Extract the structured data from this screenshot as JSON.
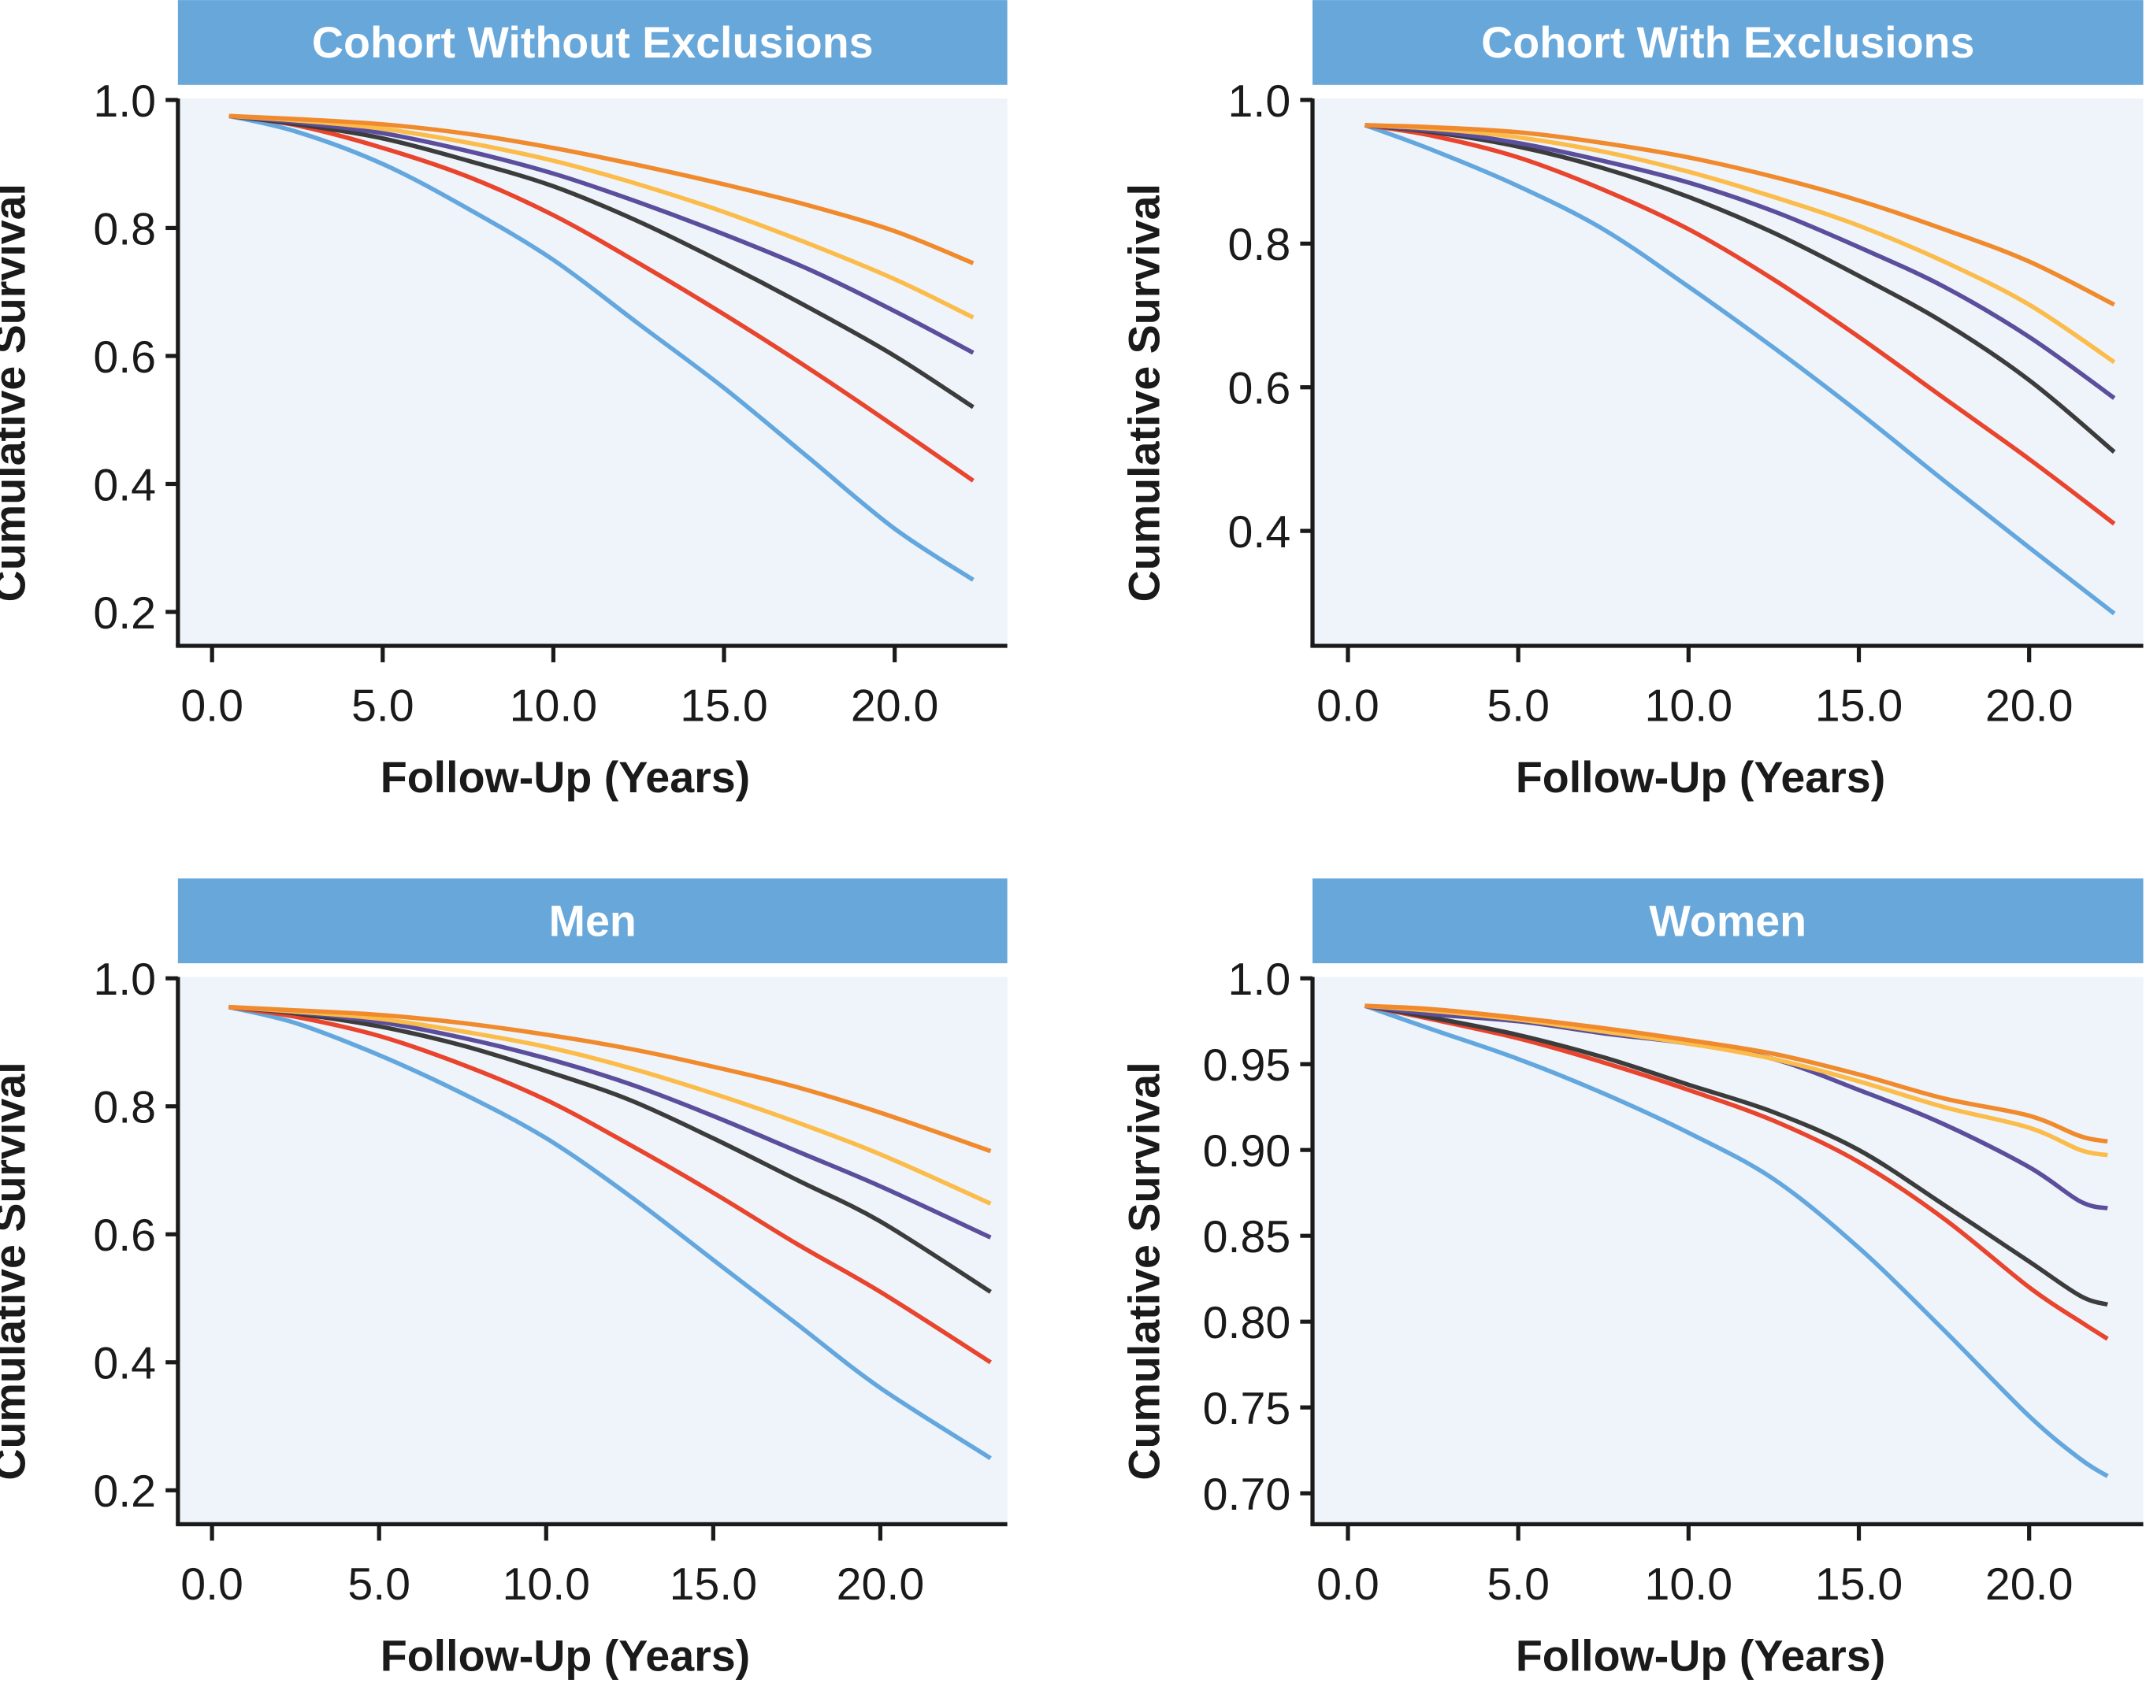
{
  "chart_data": [
    {
      "type": "line",
      "title": "Cohort Without Exclusions",
      "xlabel": "Follow-Up (Years)",
      "ylabel": "Cumulative Survival",
      "xticks": [
        "0.0",
        "5.0",
        "10.0",
        "15.0",
        "20.0"
      ],
      "yticks": [
        "1.0",
        "0.8",
        "0.6",
        "0.4",
        "0.2"
      ],
      "xlim": [
        -1.0,
        23.3
      ],
      "ylim": [
        0.147,
        1.0
      ],
      "grid": false,
      "x": [
        0.5,
        2.5,
        5,
        7.5,
        10,
        12.5,
        15,
        17.5,
        20,
        22.3
      ],
      "series": [
        {
          "color": "#63a7de",
          "values": [
            0.975,
            0.95,
            0.9,
            0.83,
            0.75,
            0.65,
            0.55,
            0.44,
            0.33,
            0.25
          ]
        },
        {
          "color": "#e8442e",
          "values": [
            0.975,
            0.96,
            0.925,
            0.88,
            0.82,
            0.745,
            0.665,
            0.58,
            0.49,
            0.405
          ]
        },
        {
          "color": "#3c3c3c",
          "values": [
            0.975,
            0.962,
            0.94,
            0.905,
            0.865,
            0.81,
            0.745,
            0.675,
            0.6,
            0.52
          ]
        },
        {
          "color": "#5b4e9c",
          "values": [
            0.975,
            0.965,
            0.948,
            0.92,
            0.885,
            0.84,
            0.79,
            0.735,
            0.67,
            0.605
          ]
        },
        {
          "color": "#fbbc4b",
          "values": [
            0.975,
            0.968,
            0.955,
            0.933,
            0.905,
            0.868,
            0.825,
            0.775,
            0.72,
            0.66
          ]
        },
        {
          "color": "#f08a2c",
          "values": [
            0.975,
            0.97,
            0.962,
            0.947,
            0.925,
            0.898,
            0.868,
            0.835,
            0.795,
            0.745
          ]
        }
      ]
    },
    {
      "type": "line",
      "title": "Cohort With Exclusions",
      "xlabel": "Follow-Up (Years)",
      "ylabel": "Cumulative Survival",
      "xticks": [
        "0.0",
        "5.0",
        "10.0",
        "15.0",
        "20.0"
      ],
      "yticks": [
        "1.0",
        "0.8",
        "0.6",
        "0.4"
      ],
      "xlim": [
        -1.04,
        23.35
      ],
      "ylim": [
        0.24,
        1.0
      ],
      "grid": false,
      "x": [
        0.5,
        2.5,
        5,
        7.5,
        10,
        12.5,
        15,
        17.5,
        20,
        22.5
      ],
      "series": [
        {
          "color": "#63a7de",
          "values": [
            0.965,
            0.93,
            0.88,
            0.82,
            0.74,
            0.655,
            0.565,
            0.47,
            0.377,
            0.285
          ]
        },
        {
          "color": "#e8442e",
          "values": [
            0.965,
            0.95,
            0.92,
            0.875,
            0.82,
            0.75,
            0.67,
            0.585,
            0.5,
            0.41
          ]
        },
        {
          "color": "#3c3c3c",
          "values": [
            0.965,
            0.955,
            0.935,
            0.905,
            0.865,
            0.815,
            0.755,
            0.69,
            0.61,
            0.51
          ]
        },
        {
          "color": "#5b4e9c",
          "values": [
            0.965,
            0.957,
            0.94,
            0.915,
            0.885,
            0.845,
            0.795,
            0.74,
            0.67,
            0.585
          ]
        },
        {
          "color": "#fbbc4b",
          "values": [
            0.965,
            0.96,
            0.948,
            0.928,
            0.9,
            0.865,
            0.825,
            0.775,
            0.715,
            0.635
          ]
        },
        {
          "color": "#f08a2c",
          "values": [
            0.965,
            0.962,
            0.955,
            0.94,
            0.92,
            0.893,
            0.86,
            0.82,
            0.775,
            0.715
          ]
        }
      ]
    },
    {
      "type": "line",
      "title": "Men",
      "xlabel": "Follow-Up (Years)",
      "ylabel": "Cumulative Survival",
      "xticks": [
        "0.0",
        "5.0",
        "10.0",
        "15.0",
        "20.0"
      ],
      "yticks": [
        "1.0",
        "0.8",
        "0.6",
        "0.4",
        "0.2"
      ],
      "xlim": [
        -1.02,
        23.8
      ],
      "ylim": [
        0.147,
        1.0
      ],
      "grid": false,
      "x": [
        0.5,
        2.5,
        5,
        7.5,
        10,
        12.5,
        15,
        17.5,
        20,
        23.3
      ],
      "series": [
        {
          "color": "#63a7de",
          "values": [
            0.955,
            0.93,
            0.88,
            0.82,
            0.75,
            0.66,
            0.56,
            0.46,
            0.36,
            0.25
          ]
        },
        {
          "color": "#e8442e",
          "values": [
            0.955,
            0.94,
            0.91,
            0.865,
            0.81,
            0.74,
            0.665,
            0.585,
            0.51,
            0.4
          ]
        },
        {
          "color": "#3c3c3c",
          "values": [
            0.955,
            0.945,
            0.925,
            0.895,
            0.855,
            0.81,
            0.75,
            0.685,
            0.62,
            0.51
          ]
        },
        {
          "color": "#5b4e9c",
          "values": [
            0.955,
            0.947,
            0.932,
            0.907,
            0.875,
            0.835,
            0.785,
            0.73,
            0.675,
            0.595
          ]
        },
        {
          "color": "#fbbc4b",
          "values": [
            0.955,
            0.948,
            0.937,
            0.917,
            0.893,
            0.86,
            0.82,
            0.775,
            0.725,
            0.648
          ]
        },
        {
          "color": "#f08a2c",
          "values": [
            0.955,
            0.95,
            0.943,
            0.93,
            0.912,
            0.89,
            0.862,
            0.83,
            0.79,
            0.73
          ]
        }
      ]
    },
    {
      "type": "line",
      "title": "Women",
      "xlabel": "Follow-Up (Years)",
      "ylabel": "Cumulative Survival",
      "xticks": [
        "0.0",
        "5.0",
        "10.0",
        "15.0",
        "20.0"
      ],
      "yticks": [
        "1.0",
        "0.95",
        "0.90",
        "0.85",
        "0.80",
        "0.75",
        "0.70"
      ],
      "xlim": [
        -1.04,
        23.35
      ],
      "ylim": [
        0.682,
        1.0
      ],
      "grid": false,
      "x": [
        0.5,
        2.5,
        5,
        7.5,
        10,
        12.5,
        15,
        17.5,
        20,
        21.5,
        22.3
      ],
      "series": [
        {
          "color": "#63a7de",
          "values": [
            0.984,
            0.97,
            0.953,
            0.933,
            0.91,
            0.883,
            0.843,
            0.795,
            0.745,
            0.72,
            0.71
          ]
        },
        {
          "color": "#e8442e",
          "values": [
            0.984,
            0.976,
            0.965,
            0.951,
            0.935,
            0.917,
            0.893,
            0.86,
            0.82,
            0.8,
            0.79
          ]
        },
        {
          "color": "#3c3c3c",
          "values": [
            0.984,
            0.977,
            0.967,
            0.954,
            0.938,
            0.922,
            0.9,
            0.868,
            0.835,
            0.815,
            0.81
          ]
        },
        {
          "color": "#5b4e9c",
          "values": [
            0.984,
            0.979,
            0.975,
            0.968,
            0.962,
            0.953,
            0.935,
            0.915,
            0.89,
            0.87,
            0.866
          ]
        },
        {
          "color": "#fbbc4b",
          "values": [
            0.984,
            0.981,
            0.976,
            0.969,
            0.962,
            0.953,
            0.94,
            0.925,
            0.913,
            0.9,
            0.897
          ]
        },
        {
          "color": "#f08a2c",
          "values": [
            0.984,
            0.982,
            0.977,
            0.971,
            0.964,
            0.956,
            0.944,
            0.93,
            0.92,
            0.908,
            0.905
          ]
        }
      ]
    }
  ],
  "colors": {
    "header": "#68a7da",
    "plot_bg": "#eef4f9",
    "axis": "#1a1a1a"
  }
}
